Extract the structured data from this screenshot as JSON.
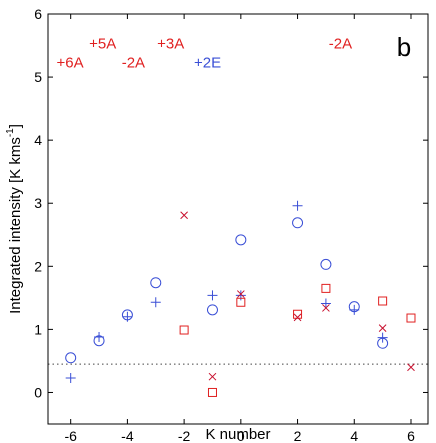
{
  "chart_data": {
    "type": "scatter",
    "xlabel": "K number",
    "ylabel": "Integrated intensity [K kms",
    "ylabel_sup": "-1",
    "ylabel_end": "]",
    "xlim": [
      -6.8,
      6.6
    ],
    "ylim": [
      -0.5,
      6
    ],
    "xticks": [
      -6,
      -4,
      -2,
      0,
      2,
      4,
      6
    ],
    "yticks": [
      0,
      1,
      2,
      3,
      4,
      5,
      6
    ],
    "panel_label": "b",
    "reference_line": {
      "y": 0.45,
      "style": "dotted",
      "color": "#444444"
    },
    "series": [
      {
        "marker": "circle",
        "color": "#3a4fd6",
        "x": [
          -6,
          -5,
          -4,
          -3,
          -1,
          0,
          2,
          3,
          4,
          5
        ],
        "y": [
          0.55,
          0.82,
          1.23,
          1.74,
          1.31,
          2.42,
          2.69,
          2.03,
          1.36,
          0.78
        ]
      },
      {
        "marker": "plus",
        "color": "#3a4fd6",
        "x": [
          -6,
          -5,
          -4,
          -3,
          -1,
          0,
          2,
          3,
          4,
          5
        ],
        "y": [
          0.23,
          0.88,
          1.2,
          1.43,
          1.54,
          1.54,
          2.96,
          1.41,
          1.31,
          0.87
        ]
      },
      {
        "marker": "square",
        "color": "#e02020",
        "x": [
          -2,
          -1,
          0,
          2,
          3,
          5,
          6
        ],
        "y": [
          0.99,
          0.0,
          1.43,
          1.24,
          1.65,
          1.45,
          1.18
        ]
      },
      {
        "marker": "x",
        "color": "#c8102e",
        "x": [
          -2,
          -1,
          0,
          2,
          3,
          5,
          6
        ],
        "y": [
          2.81,
          0.25,
          1.56,
          1.19,
          1.34,
          1.02,
          0.4
        ]
      }
    ],
    "annotations": [
      {
        "text": "+5A",
        "x": -5.35,
        "y": 5.45,
        "color": "#e02020"
      },
      {
        "text": "+3A",
        "x": -2.95,
        "y": 5.45,
        "color": "#e02020"
      },
      {
        "text": "-2A",
        "x": 3.1,
        "y": 5.45,
        "color": "#e02020"
      },
      {
        "text": "+6A",
        "x": -6.5,
        "y": 5.15,
        "color": "#e02020"
      },
      {
        "text": "-2A",
        "x": -4.2,
        "y": 5.15,
        "color": "#e02020"
      },
      {
        "text": "+2E",
        "x": -1.65,
        "y": 5.15,
        "color": "#3a4fd6"
      }
    ]
  }
}
